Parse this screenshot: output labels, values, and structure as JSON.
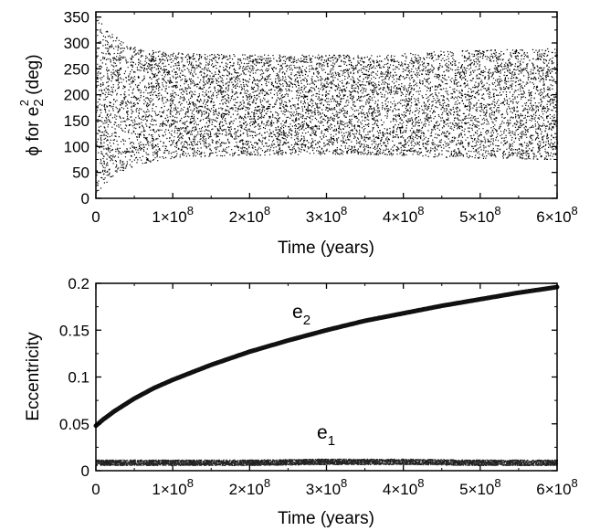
{
  "chart_data": [
    {
      "type": "scatter",
      "ylabel": {
        "prefix": "ϕ for e",
        "sub": "2",
        "sup": "2",
        "suffix": " (deg)"
      },
      "xlabel": "Time (years)",
      "xlim": [
        0,
        600000000
      ],
      "ylim": [
        0,
        360
      ],
      "x_ticks": [
        {
          "value": 0,
          "mantissa": "0",
          "exp": ""
        },
        {
          "value": 100000000,
          "mantissa": "1×10",
          "exp": "8"
        },
        {
          "value": 200000000,
          "mantissa": "2×10",
          "exp": "8"
        },
        {
          "value": 300000000,
          "mantissa": "3×10",
          "exp": "8"
        },
        {
          "value": 400000000,
          "mantissa": "4×10",
          "exp": "8"
        },
        {
          "value": 500000000,
          "mantissa": "5×10",
          "exp": "8"
        },
        {
          "value": 600000000,
          "mantissa": "6×10",
          "exp": "8"
        }
      ],
      "y_ticks": [
        0,
        50,
        100,
        150,
        200,
        250,
        300,
        350
      ],
      "envelope": {
        "time": [
          0,
          10000000,
          20000000,
          40000000,
          60000000,
          100000000,
          150000000,
          200000000,
          300000000,
          370000000,
          400000000,
          450000000,
          500000000,
          600000000
        ],
        "upper": [
          355,
          335,
          318,
          300,
          290,
          282,
          280,
          278,
          278,
          277,
          280,
          285,
          288,
          290
        ],
        "lower": [
          5,
          25,
          42,
          58,
          68,
          78,
          82,
          84,
          85,
          85,
          83,
          80,
          78,
          75
        ]
      },
      "grid": false
    },
    {
      "type": "line",
      "ylabel": "Eccentricity",
      "xlabel": "Time (years)",
      "xlim": [
        0,
        600000000
      ],
      "ylim": [
        0,
        0.2
      ],
      "x_ticks": [
        {
          "value": 0,
          "mantissa": "0",
          "exp": ""
        },
        {
          "value": 100000000,
          "mantissa": "1×10",
          "exp": "8"
        },
        {
          "value": 200000000,
          "mantissa": "2×10",
          "exp": "8"
        },
        {
          "value": 300000000,
          "mantissa": "3×10",
          "exp": "8"
        },
        {
          "value": 400000000,
          "mantissa": "4×10",
          "exp": "8"
        },
        {
          "value": 500000000,
          "mantissa": "5×10",
          "exp": "8"
        },
        {
          "value": 600000000,
          "mantissa": "6×10",
          "exp": "8"
        }
      ],
      "y_ticks": [
        {
          "value": 0,
          "label": "0"
        },
        {
          "value": 0.05,
          "label": "0.05"
        },
        {
          "value": 0.1,
          "label": "0.1"
        },
        {
          "value": 0.15,
          "label": "0.15"
        },
        {
          "value": 0.2,
          "label": "0.2"
        }
      ],
      "series": [
        {
          "name": "e2",
          "label_base": "e",
          "label_sub": "2",
          "x": [
            0,
            10000000,
            25000000,
            50000000,
            75000000,
            100000000,
            150000000,
            200000000,
            250000000,
            300000000,
            350000000,
            400000000,
            450000000,
            500000000,
            550000000,
            600000000
          ],
          "y": [
            0.048,
            0.055,
            0.064,
            0.077,
            0.088,
            0.097,
            0.113,
            0.127,
            0.139,
            0.15,
            0.16,
            0.168,
            0.176,
            0.183,
            0.19,
            0.196
          ]
        },
        {
          "name": "e1",
          "label_base": "e",
          "label_sub": "1",
          "x": [
            0,
            100000000,
            200000000,
            300000000,
            400000000,
            500000000,
            600000000
          ],
          "y": [
            0.009,
            0.009,
            0.009,
            0.01,
            0.01,
            0.009,
            0.009
          ],
          "spread": 0.003
        }
      ],
      "grid": false
    }
  ]
}
